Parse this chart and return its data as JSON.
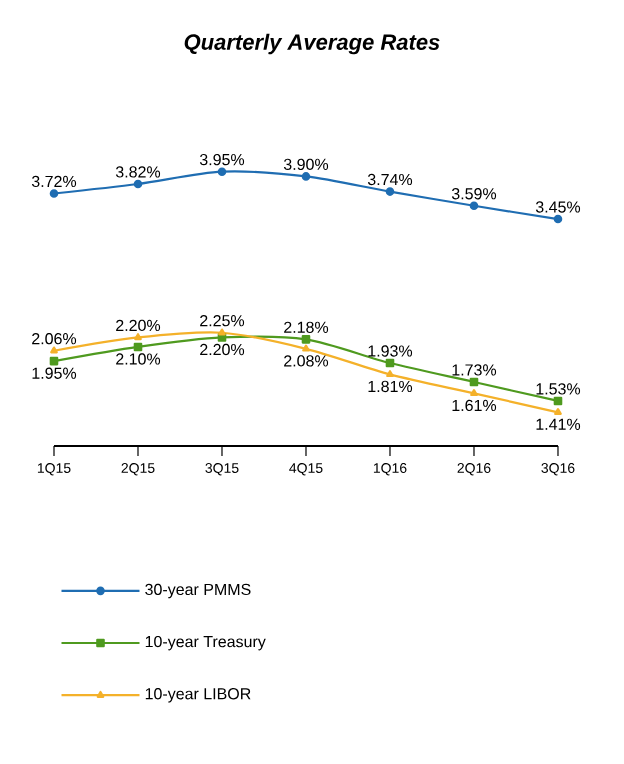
{
  "chart_data": {
    "type": "line",
    "title": "Quarterly Average Rates",
    "categories": [
      "1Q15",
      "2Q15",
      "3Q15",
      "4Q15",
      "1Q16",
      "2Q16",
      "3Q16"
    ],
    "series": [
      {
        "name": "30-year PMMS",
        "color": "#1f6db2",
        "marker": "circle",
        "values": [
          3.72,
          3.82,
          3.95,
          3.9,
          3.74,
          3.59,
          3.45
        ],
        "value_labels": [
          "3.72%",
          "3.82%",
          "3.95%",
          "3.90%",
          "3.74%",
          "3.59%",
          "3.45%"
        ]
      },
      {
        "name": "10-year Treasury",
        "color": "#4f9a1f",
        "marker": "square",
        "values": [
          1.95,
          2.1,
          2.2,
          2.18,
          1.93,
          1.73,
          1.53
        ],
        "value_labels": [
          "1.95%",
          "2.10%",
          "2.20%",
          "2.18%",
          "1.93%",
          "1.73%",
          "1.53%"
        ]
      },
      {
        "name": "10-year LIBOR",
        "color": "#f4b12a",
        "marker": "triangle",
        "values": [
          2.06,
          2.2,
          2.25,
          2.08,
          1.81,
          1.61,
          1.41
        ],
        "value_labels": [
          "2.06%",
          "2.20%",
          "2.25%",
          "2.08%",
          "1.81%",
          "1.61%",
          "1.41%"
        ]
      }
    ],
    "tick_labels": "x",
    "legend": "bottom",
    "line_style": "solid",
    "grid": false
  }
}
